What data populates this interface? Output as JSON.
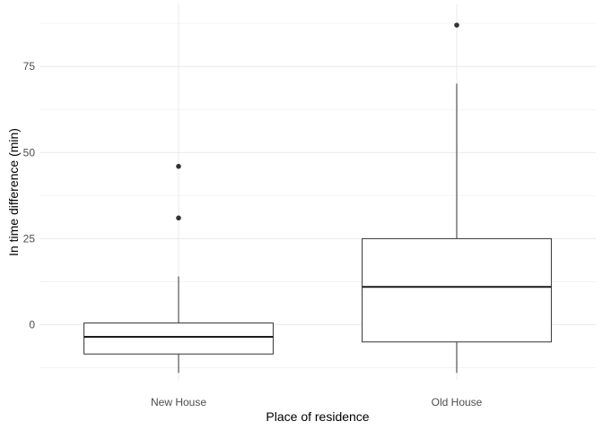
{
  "chart_data": {
    "type": "boxplot",
    "title": "",
    "xlabel": "Place of residence",
    "ylabel": "In time difference (min)",
    "categories": [
      "New House",
      "Old House"
    ],
    "ylim": [
      -16,
      93
    ],
    "y_ticks": [
      0,
      25,
      50,
      75
    ],
    "grid": true,
    "boxes": [
      {
        "category": "New House",
        "whisker_low": -14,
        "q1": -8.5,
        "median": -3.5,
        "q3": 0.5,
        "whisker_high": 14,
        "outliers": [
          31,
          46
        ]
      },
      {
        "category": "Old House",
        "whisker_low": -14,
        "q1": -5,
        "median": 11,
        "q3": 25,
        "whisker_high": 70,
        "outliers": [
          87
        ]
      }
    ],
    "colors": {
      "box_fill": "#ffffff",
      "box_stroke": "#333333",
      "median": "#1a1a1a",
      "grid": "#ebebeb",
      "outlier": "#333333"
    }
  }
}
